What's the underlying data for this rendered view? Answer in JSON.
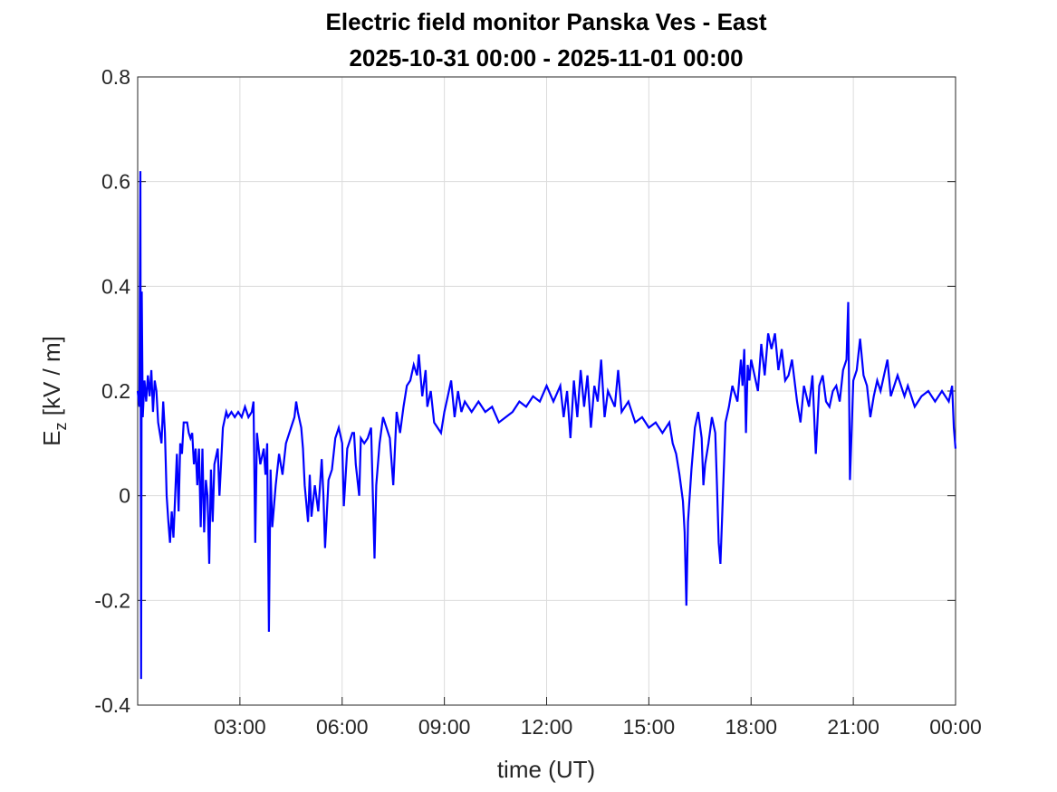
{
  "chart_data": {
    "type": "line",
    "title": "Electric field monitor Panska Ves - East",
    "subtitle": "2025-10-31 00:00 - 2025-11-01 00:00",
    "xlabel": "time (UT)",
    "ylabel_main": "E",
    "ylabel_sub": "z",
    "ylabel_unit": " [kV / m]",
    "xlim_hours": [
      0,
      24
    ],
    "ylim": [
      -0.4,
      0.8
    ],
    "grid": true,
    "line_color": "#0000ff",
    "x_ticks": [
      {
        "hour": 3,
        "label": "03:00"
      },
      {
        "hour": 6,
        "label": "06:00"
      },
      {
        "hour": 9,
        "label": "09:00"
      },
      {
        "hour": 12,
        "label": "12:00"
      },
      {
        "hour": 15,
        "label": "15:00"
      },
      {
        "hour": 18,
        "label": "18:00"
      },
      {
        "hour": 21,
        "label": "21:00"
      },
      {
        "hour": 24,
        "label": "00:00"
      }
    ],
    "y_ticks": [
      {
        "value": -0.4,
        "label": "-0.4"
      },
      {
        "value": -0.2,
        "label": "-0.2"
      },
      {
        "value": 0,
        "label": "0"
      },
      {
        "value": 0.2,
        "label": "0.2"
      },
      {
        "value": 0.4,
        "label": "0.4"
      },
      {
        "value": 0.6,
        "label": "0.6"
      },
      {
        "value": 0.8,
        "label": "0.8"
      }
    ],
    "series": [
      {
        "x_hours": [
          0.0,
          0.05,
          0.08,
          0.1,
          0.12,
          0.15,
          0.2,
          0.25,
          0.3,
          0.35,
          0.4,
          0.45,
          0.5,
          0.55,
          0.6,
          0.7,
          0.75,
          0.8,
          0.85,
          0.9,
          0.95,
          1.0,
          1.05,
          1.1,
          1.15,
          1.2,
          1.25,
          1.3,
          1.35,
          1.45,
          1.5,
          1.55,
          1.6,
          1.65,
          1.7,
          1.75,
          1.8,
          1.85,
          1.9,
          1.95,
          2.0,
          2.05,
          2.1,
          2.15,
          2.2,
          2.25,
          2.35,
          2.4,
          2.5,
          2.6,
          2.65,
          2.75,
          2.85,
          2.95,
          3.05,
          3.15,
          3.25,
          3.35,
          3.4,
          3.45,
          3.5,
          3.6,
          3.7,
          3.75,
          3.8,
          3.85,
          3.9,
          3.95,
          4.05,
          4.15,
          4.25,
          4.35,
          4.5,
          4.6,
          4.65,
          4.7,
          4.8,
          4.85,
          4.9,
          5.0,
          5.05,
          5.1,
          5.2,
          5.3,
          5.4,
          5.45,
          5.5,
          5.6,
          5.7,
          5.8,
          5.9,
          6.0,
          6.05,
          6.15,
          6.3,
          6.35,
          6.4,
          6.5,
          6.55,
          6.65,
          6.75,
          6.85,
          6.95,
          7.0,
          7.1,
          7.2,
          7.3,
          7.4,
          7.5,
          7.6,
          7.7,
          7.8,
          7.9,
          8.0,
          8.1,
          8.2,
          8.25,
          8.35,
          8.45,
          8.5,
          8.6,
          8.7,
          8.8,
          8.9,
          9.0,
          9.1,
          9.2,
          9.3,
          9.4,
          9.5,
          9.6,
          9.8,
          10.0,
          10.2,
          10.4,
          10.6,
          10.8,
          11.0,
          11.2,
          11.4,
          11.6,
          11.8,
          12.0,
          12.2,
          12.4,
          12.5,
          12.6,
          12.7,
          12.8,
          12.9,
          13.0,
          13.1,
          13.2,
          13.3,
          13.4,
          13.5,
          13.6,
          13.7,
          13.8,
          14.0,
          14.1,
          14.2,
          14.4,
          14.6,
          14.8,
          15.0,
          15.2,
          15.4,
          15.6,
          15.7,
          15.8,
          15.9,
          16.0,
          16.05,
          16.1,
          16.15,
          16.25,
          16.35,
          16.45,
          16.55,
          16.6,
          16.65,
          16.75,
          16.85,
          16.95,
          17.0,
          17.05,
          17.1,
          17.15,
          17.25,
          17.35,
          17.45,
          17.5,
          17.6,
          17.7,
          17.75,
          17.8,
          17.85,
          17.9,
          17.95,
          18.0,
          18.2,
          18.3,
          18.4,
          18.5,
          18.6,
          18.7,
          18.8,
          18.9,
          19.0,
          19.1,
          19.2,
          19.35,
          19.45,
          19.55,
          19.7,
          19.8,
          19.9,
          20.0,
          20.1,
          20.2,
          20.3,
          20.4,
          20.5,
          20.6,
          20.7,
          20.8,
          20.85,
          20.9,
          20.95,
          21.0,
          21.1,
          21.2,
          21.3,
          21.4,
          21.5,
          21.6,
          21.7,
          21.8,
          22.0,
          22.1,
          22.3,
          22.5,
          22.6,
          22.8,
          23.0,
          23.2,
          23.4,
          23.6,
          23.8,
          23.9,
          23.95,
          24.0
        ],
        "values": [
          0.2,
          0.17,
          0.62,
          -0.35,
          0.39,
          0.15,
          0.22,
          0.18,
          0.23,
          0.19,
          0.24,
          0.16,
          0.22,
          0.2,
          0.14,
          0.1,
          0.18,
          0.12,
          0.0,
          -0.05,
          -0.09,
          -0.03,
          -0.08,
          0.0,
          0.08,
          -0.03,
          0.1,
          0.08,
          0.14,
          0.14,
          0.12,
          0.11,
          0.12,
          0.06,
          0.09,
          0.02,
          0.09,
          -0.06,
          0.09,
          -0.07,
          0.03,
          0.0,
          -0.13,
          0.05,
          -0.05,
          0.06,
          0.09,
          0.0,
          0.13,
          0.16,
          0.15,
          0.16,
          0.15,
          0.16,
          0.15,
          0.17,
          0.15,
          0.16,
          0.18,
          -0.09,
          0.12,
          0.06,
          0.09,
          0.04,
          0.1,
          -0.26,
          0.05,
          -0.06,
          0.02,
          0.08,
          0.04,
          0.1,
          0.13,
          0.15,
          0.18,
          0.16,
          0.13,
          0.09,
          0.02,
          -0.05,
          0.04,
          -0.04,
          0.02,
          -0.03,
          0.07,
          0.0,
          -0.1,
          0.03,
          0.05,
          0.11,
          0.13,
          0.1,
          -0.02,
          0.09,
          0.12,
          0.12,
          0.06,
          0.0,
          0.11,
          0.1,
          0.11,
          0.13,
          -0.12,
          0.02,
          0.1,
          0.15,
          0.13,
          0.11,
          0.02,
          0.16,
          0.12,
          0.17,
          0.21,
          0.22,
          0.25,
          0.23,
          0.27,
          0.19,
          0.24,
          0.17,
          0.2,
          0.14,
          0.13,
          0.12,
          0.16,
          0.19,
          0.22,
          0.15,
          0.2,
          0.16,
          0.18,
          0.16,
          0.18,
          0.16,
          0.17,
          0.14,
          0.15,
          0.16,
          0.18,
          0.17,
          0.19,
          0.18,
          0.21,
          0.18,
          0.21,
          0.15,
          0.2,
          0.11,
          0.22,
          0.15,
          0.24,
          0.17,
          0.23,
          0.13,
          0.21,
          0.18,
          0.26,
          0.15,
          0.2,
          0.17,
          0.24,
          0.16,
          0.18,
          0.14,
          0.15,
          0.13,
          0.14,
          0.12,
          0.14,
          0.1,
          0.08,
          0.04,
          -0.01,
          -0.07,
          -0.21,
          -0.05,
          0.05,
          0.13,
          0.16,
          0.11,
          0.02,
          0.06,
          0.1,
          0.15,
          0.12,
          0.02,
          -0.09,
          -0.13,
          -0.04,
          0.14,
          0.17,
          0.21,
          0.2,
          0.18,
          0.26,
          0.21,
          0.28,
          0.12,
          0.25,
          0.22,
          0.26,
          0.2,
          0.29,
          0.23,
          0.31,
          0.28,
          0.31,
          0.24,
          0.28,
          0.22,
          0.23,
          0.26,
          0.18,
          0.14,
          0.21,
          0.17,
          0.23,
          0.08,
          0.21,
          0.23,
          0.18,
          0.17,
          0.2,
          0.21,
          0.18,
          0.24,
          0.26,
          0.37,
          0.03,
          0.12,
          0.22,
          0.24,
          0.3,
          0.23,
          0.21,
          0.15,
          0.19,
          0.22,
          0.2,
          0.26,
          0.19,
          0.23,
          0.19,
          0.21,
          0.17,
          0.19,
          0.2,
          0.18,
          0.2,
          0.18,
          0.21,
          0.13,
          0.09
        ]
      }
    ]
  }
}
